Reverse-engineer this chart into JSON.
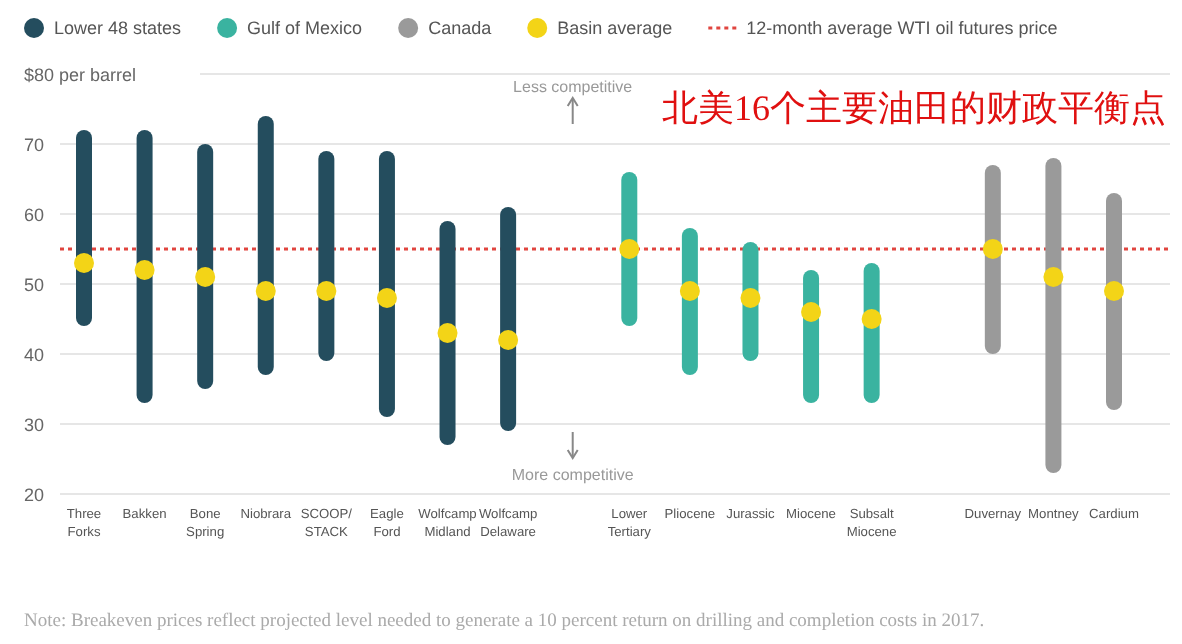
{
  "chart_data": {
    "type": "bar",
    "title": "北美16个主要油田的财政平衡点",
    "categories": [
      "Three Forks",
      "Bakken",
      "Bone Spring",
      "Niobrara",
      "SCOOP/STACK",
      "Eagle Ford",
      "Wolfcamp Midland",
      "Wolfcamp Delaware",
      "Lower Tertiary",
      "Pliocene",
      "Jurassic",
      "Miocene",
      "Subsalt Miocene",
      "Duvernay",
      "Montney",
      "Cardium"
    ],
    "series": [
      {
        "name": "Lower 48 states",
        "color": "#244d5e",
        "base": [
          44,
          33,
          35,
          37,
          39,
          31,
          27,
          29,
          null,
          null,
          null,
          null,
          null,
          null,
          null,
          null
        ],
        "values": [
          28,
          39,
          35,
          37,
          30,
          38,
          32,
          32,
          null,
          null,
          null,
          null,
          null,
          null,
          null,
          null
        ]
      },
      {
        "name": "Gulf of Mexico",
        "color": "#3ab3a0",
        "base": [
          null,
          null,
          null,
          null,
          null,
          null,
          null,
          null,
          44,
          37,
          39,
          33,
          33,
          null,
          null,
          null
        ],
        "values": [
          null,
          null,
          null,
          null,
          null,
          null,
          null,
          null,
          22,
          21,
          17,
          19,
          20,
          null,
          null,
          null
        ]
      },
      {
        "name": "Canada",
        "color": "#9a9a9a",
        "base": [
          null,
          null,
          null,
          null,
          null,
          null,
          null,
          null,
          null,
          null,
          null,
          null,
          null,
          40,
          23,
          32
        ],
        "values": [
          null,
          null,
          null,
          null,
          null,
          null,
          null,
          null,
          null,
          null,
          null,
          null,
          null,
          27,
          45,
          31
        ]
      },
      {
        "name": "Basin average",
        "type": "scatter",
        "color": "#f3d417",
        "marker": "circle",
        "values": [
          53,
          52,
          51,
          49,
          49,
          48,
          43,
          42,
          55,
          49,
          48,
          46,
          45,
          55,
          51,
          49
        ]
      }
    ],
    "ref_lines": [
      {
        "axis": "y",
        "value": 55,
        "label": "12-month average WTI oil futures price",
        "color": "#e0453f",
        "line_style": "dotted"
      }
    ],
    "ylim": [
      20,
      80
    ],
    "yticks": [
      20,
      30,
      40,
      50,
      60,
      70,
      {
        "value": 80,
        "label": "$80 per barrel"
      }
    ],
    "grid": "y",
    "legend": "top",
    "annotations": [
      "Less competitive",
      "More competitive",
      "Note: Breakeven prices reflect projected level needed to generate a 10 percent return on drilling and completion costs in 2017."
    ]
  }
}
